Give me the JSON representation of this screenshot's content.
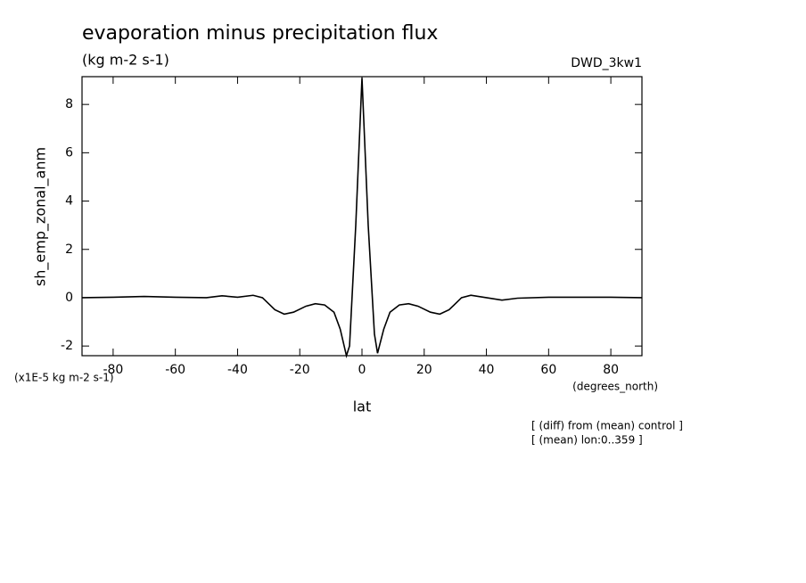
{
  "chart_data": {
    "type": "line",
    "title": "evaporation minus precipitation flux",
    "subtitle": "(kg m-2 s-1)",
    "dataset": "DWD_3kw1",
    "y_label": "sh_emp_zonal_anm",
    "x_label": "lat",
    "y_units": "(x1E-5 kg m-2 s-1)",
    "x_units": "(degrees_north)",
    "notes": [
      "[ (diff) from (mean) control ]",
      "[ (mean) lon:0..359 ]"
    ],
    "x": [
      -90,
      -80,
      -70,
      -60,
      -50,
      -45,
      -40,
      -35,
      -32,
      -28,
      -25,
      -22,
      -18,
      -15,
      -12,
      -9,
      -7,
      -5,
      -4,
      -2,
      0,
      2,
      4,
      5,
      7,
      9,
      12,
      15,
      18,
      22,
      25,
      28,
      32,
      35,
      40,
      45,
      50,
      60,
      70,
      80,
      90
    ],
    "series": [
      {
        "name": "sh_emp_zonal_anm",
        "color": "#000000",
        "values": [
          0,
          0.02,
          0.05,
          0.02,
          0.0,
          0.08,
          0.02,
          0.1,
          0.0,
          -0.5,
          -0.68,
          -0.6,
          -0.35,
          -0.25,
          -0.3,
          -0.6,
          -1.3,
          -2.4,
          -2.0,
          3,
          9.1,
          3,
          -1.5,
          -2.3,
          -1.3,
          -0.6,
          -0.3,
          -0.25,
          -0.35,
          -0.6,
          -0.68,
          -0.5,
          0.0,
          0.1,
          0.0,
          -0.1,
          -0.02,
          0.02,
          0.02,
          0.02,
          0
        ]
      }
    ],
    "xlim": [
      -90,
      90
    ],
    "ylim": [
      -2.4,
      9.15
    ],
    "xticks": [
      -80,
      -60,
      -40,
      -20,
      0,
      20,
      40,
      60,
      80
    ],
    "yticks": [
      -2,
      0,
      2,
      4,
      6,
      8
    ]
  }
}
